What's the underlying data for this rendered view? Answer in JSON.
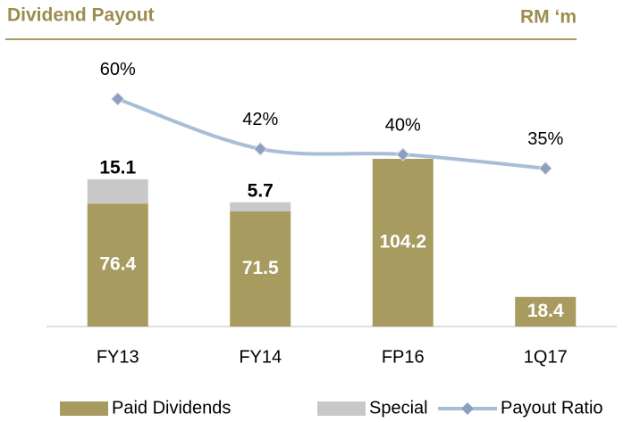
{
  "chart_data": {
    "type": "bar",
    "stacked": true,
    "title": "Dividend Payout",
    "unit_label": "RM ‘m",
    "categories": [
      "FY13",
      "FY14",
      "FP16",
      "1Q17"
    ],
    "ylim": [
      0,
      150
    ],
    "y2lim": [
      -22,
      65
    ],
    "series": [
      {
        "name": "Paid Dividends",
        "type": "bar",
        "color": "#a89b5f",
        "label_color": "#ffffff",
        "values": [
          76.4,
          71.5,
          104.2,
          18.4
        ]
      },
      {
        "name": "Special",
        "type": "bar",
        "color": "#c8c8c8",
        "label_color": "#000000",
        "values": [
          15.1,
          5.7,
          null,
          null
        ]
      },
      {
        "name": "Payout Ratio",
        "type": "line",
        "axis": "y2",
        "color": "#a9bdd8",
        "marker_color": "#8c9fbf",
        "values": [
          60,
          42,
          40,
          35
        ],
        "value_labels": [
          "60%",
          "42%",
          "40%",
          "35%"
        ]
      }
    ]
  }
}
